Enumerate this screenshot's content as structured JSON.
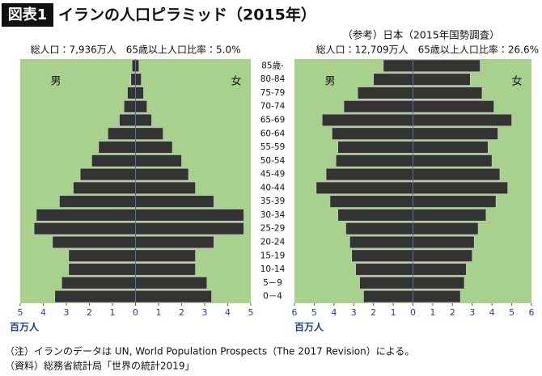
{
  "header": {
    "badge": "図表1",
    "title": "イランの人口ピラミッド（2015年）"
  },
  "chart_data": [
    {
      "type": "pyramid",
      "subtitle": "総人口：7,936万人　65歳以上人口比率：5.0%",
      "series": [
        {
          "name": "男",
          "color": "#333333",
          "values": [
            0.15,
            0.2,
            0.35,
            0.5,
            0.7,
            1.2,
            1.6,
            1.9,
            2.4,
            2.7,
            3.3,
            4.3,
            4.4,
            3.6,
            2.9,
            2.9,
            3.2,
            3.5
          ]
        },
        {
          "name": "女",
          "color": "#333333",
          "values": [
            0.15,
            0.25,
            0.35,
            0.5,
            0.7,
            1.2,
            1.6,
            2.0,
            2.3,
            2.6,
            3.4,
            4.7,
            4.7,
            3.4,
            2.6,
            2.6,
            3.1,
            3.3
          ]
        }
      ],
      "xlim": [
        -5,
        5
      ],
      "xticks": [
        {
          "value": -5,
          "label": "5"
        },
        {
          "value": -4,
          "label": "4"
        },
        {
          "value": -3,
          "label": "3"
        },
        {
          "value": -2,
          "label": "2"
        },
        {
          "value": -1,
          "label": "1"
        },
        0,
        1,
        2,
        3,
        4,
        5
      ],
      "xlabel": "百万人",
      "background": "#a9d18e"
    },
    {
      "type": "pyramid",
      "title": "（参考）日本（2015年国勢調査）",
      "subtitle": "総人口：12,709万人　65歳以上人口比率：26.6%",
      "categories": [
        "85歳-",
        "80-84",
        "75-79",
        "70-74",
        "65-69",
        "60-64",
        "55-59",
        "50-54",
        "45-49",
        "40-44",
        "35-39",
        "30-34",
        "25-29",
        "20-24",
        "15-19",
        "10-14",
        "5－9",
        "0－4"
      ],
      "series": [
        {
          "name": "男",
          "color": "#333333",
          "values": [
            1.5,
            2.0,
            2.8,
            3.5,
            4.6,
            4.1,
            3.8,
            3.9,
            4.4,
            4.9,
            4.2,
            3.8,
            3.4,
            3.2,
            3.1,
            2.9,
            2.7,
            2.5
          ]
        },
        {
          "name": "女",
          "color": "#333333",
          "values": [
            3.4,
            2.9,
            3.5,
            4.1,
            5.0,
            4.3,
            3.8,
            4.0,
            4.4,
            4.8,
            4.2,
            3.7,
            3.3,
            3.1,
            3.0,
            2.7,
            2.6,
            2.4
          ]
        }
      ],
      "xlim": [
        -6,
        6
      ],
      "xticks": [
        {
          "value": -6,
          "label": "6"
        },
        {
          "value": -5,
          "label": "5"
        },
        {
          "value": -4,
          "label": "4"
        },
        {
          "value": -3,
          "label": "3"
        },
        {
          "value": -2,
          "label": "2"
        },
        {
          "value": -1,
          "label": "1"
        },
        0,
        1,
        2,
        3,
        4,
        5,
        6
      ],
      "xlabel": "百万人",
      "background": "#a9d18e"
    }
  ],
  "notes": [
    "（注）イランのデータは UN, World Population Prospects（The 2017 Revision）による。",
    "（資料）総務省統計局「世界の統計2019」"
  ]
}
